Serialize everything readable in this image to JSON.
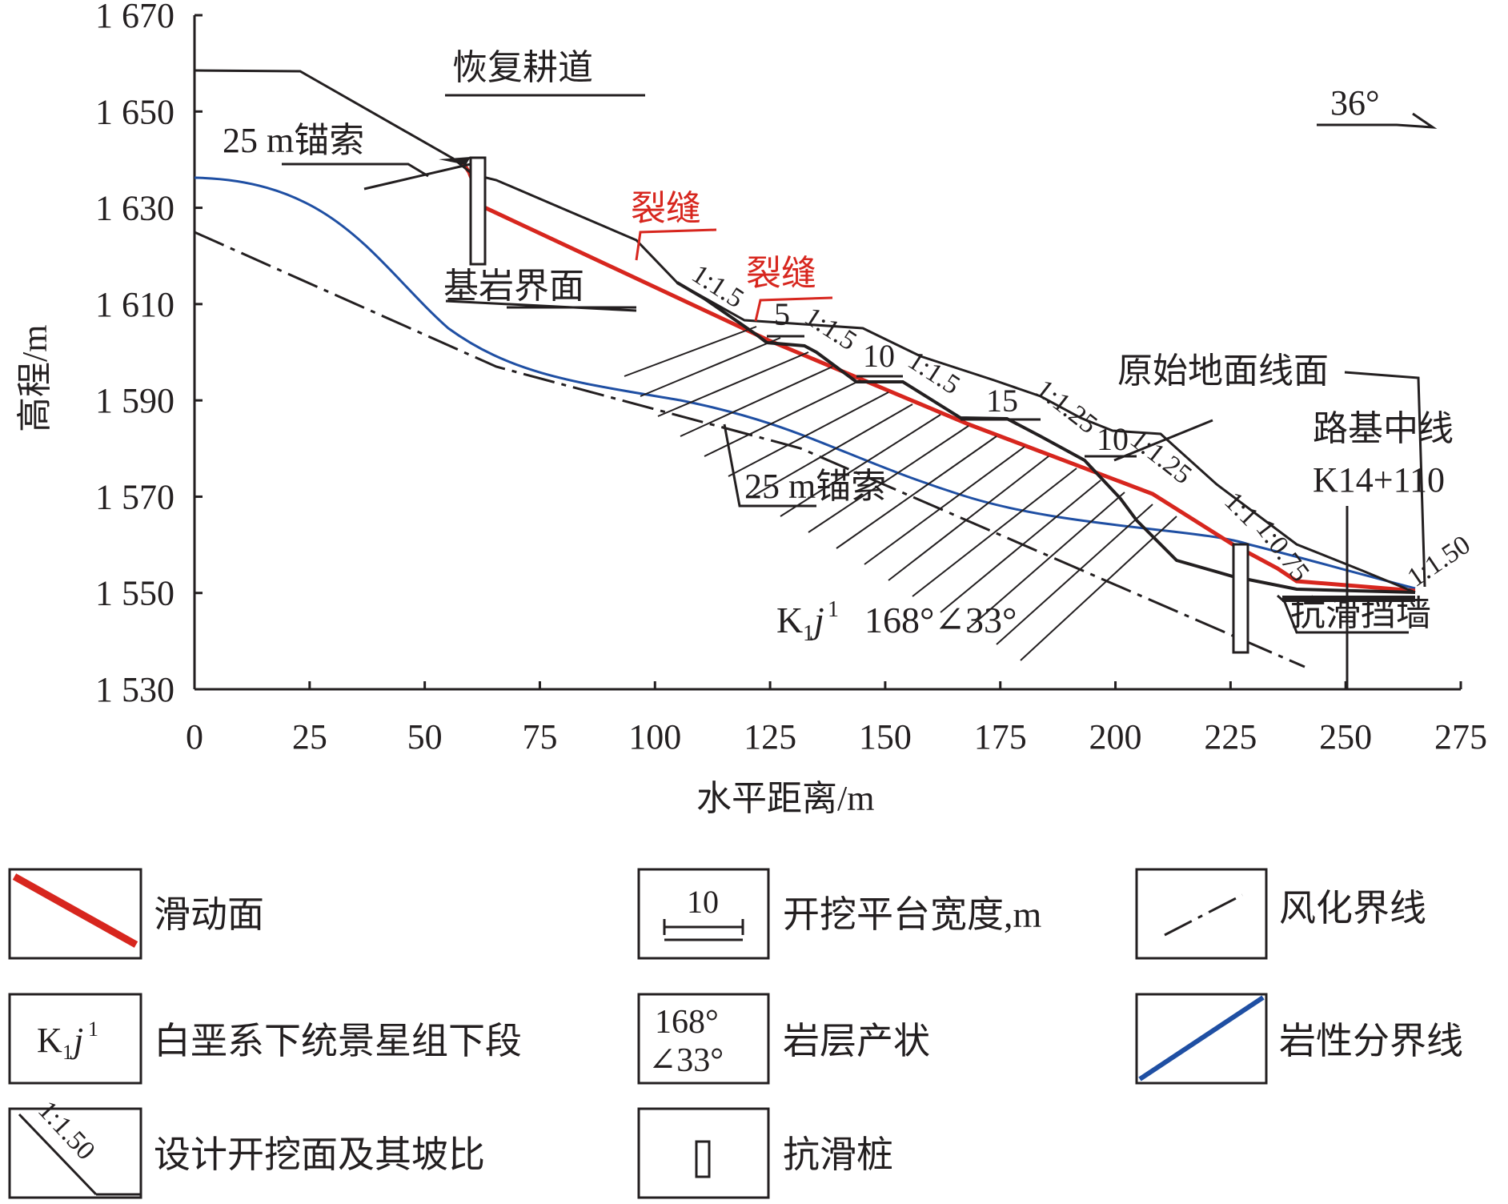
{
  "chart_data": {
    "type": "diagram",
    "xlabel": "水平距离/m",
    "ylabel": "高程/m",
    "xlim": [
      0,
      275
    ],
    "ylim": [
      1530,
      1670
    ],
    "x_ticks": [
      "0",
      "25",
      "50",
      "75",
      "100",
      "125",
      "150",
      "175",
      "200",
      "225",
      "250",
      "275"
    ],
    "y_ticks": [
      "1 670",
      "1 650",
      "1 630",
      "1 610",
      "1 590",
      "1 570",
      "1 550",
      "1 530"
    ],
    "colors": {
      "sliding_surface": "#d7261e",
      "lithology_boundary": "#1f4fa3",
      "lines": "#231f20"
    },
    "annotations": {
      "restore_road": "恢复耕道",
      "anchor_top": "25 m锚索",
      "crack_1": "裂缝",
      "crack_2": "裂缝",
      "bedrock_interface": "基岩界面",
      "anchor_bottom": "25 m锚索",
      "original_ground": "原始地面线面",
      "road_centerline": "路基中线",
      "station": "K14+110",
      "attitude": "168°∠33°",
      "strata_main": "K",
      "strata_sub": "1",
      "strata_j": "j",
      "strata_sup": "1",
      "retaining_wall": "抗滑挡墙",
      "dip_angle": "36°"
    },
    "slope_ratios": [
      "1:1.5",
      "1:1.5",
      "1:1.5",
      "1:1.25",
      "1:1.25",
      "1:1",
      "1:0.75",
      "1:1.50"
    ],
    "platform_widths": [
      "5",
      "10",
      "15",
      "10"
    ]
  },
  "legend": [
    {
      "symbol": "sliding-surface",
      "label": "滑动面"
    },
    {
      "symbol": "platform-width",
      "label": "开挖平台宽度,m",
      "sample": "10"
    },
    {
      "symbol": "weathering-boundary",
      "label": "风化界线"
    },
    {
      "symbol": "strata-code",
      "label": "白垩系下统景星组下段"
    },
    {
      "symbol": "attitude",
      "label": "岩层产状",
      "sample_top": "168°",
      "sample_bottom": "∠33°"
    },
    {
      "symbol": "lithology-boundary",
      "label": "岩性分界线"
    },
    {
      "symbol": "excavation-slope",
      "label": "设计开挖面及其坡比",
      "sample": "1:1.50"
    },
    {
      "symbol": "anti-slide-pile",
      "label": "抗滑桩"
    }
  ]
}
